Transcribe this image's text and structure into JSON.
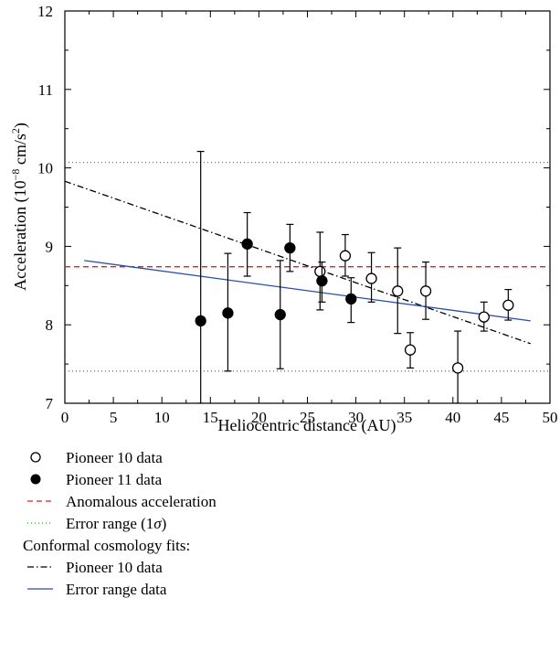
{
  "chart_data": {
    "type": "scatter",
    "title": "",
    "xlabel": "Heliocentric distance (AU)",
    "ylabel_parts": {
      "pre": "Acceleration (10",
      "exp1": "−8",
      "mid": " cm/s",
      "exp2": "2",
      "post": ")"
    },
    "xlim": [
      0,
      50
    ],
    "ylim": [
      7,
      12
    ],
    "x_ticks": [
      "0",
      "5",
      "10",
      "15",
      "20",
      "25",
      "30",
      "35",
      "40",
      "45",
      "50"
    ],
    "y_ticks": [
      "7",
      "8",
      "9",
      "10",
      "11",
      "12"
    ],
    "grid": false,
    "legend_position": "below",
    "series": [
      {
        "name": "Pioneer 10 data",
        "kind": "points",
        "marker": "open-circle",
        "points": [
          {
            "x": 26.3,
            "y": 8.68,
            "lo": 8.19,
            "hi": 9.18
          },
          {
            "x": 28.9,
            "y": 8.88,
            "lo": 8.62,
            "hi": 9.15
          },
          {
            "x": 31.6,
            "y": 8.59,
            "lo": 8.29,
            "hi": 8.92
          },
          {
            "x": 34.3,
            "y": 8.43,
            "lo": 7.89,
            "hi": 8.98
          },
          {
            "x": 35.6,
            "y": 7.68,
            "lo": 7.45,
            "hi": 7.9
          },
          {
            "x": 37.2,
            "y": 8.43,
            "lo": 8.07,
            "hi": 8.8
          },
          {
            "x": 40.5,
            "y": 7.45,
            "lo": 7.0,
            "hi": 7.92
          },
          {
            "x": 43.2,
            "y": 8.1,
            "lo": 7.92,
            "hi": 8.29
          },
          {
            "x": 45.7,
            "y": 8.25,
            "lo": 8.06,
            "hi": 8.45
          }
        ]
      },
      {
        "name": "Pioneer 11 data",
        "kind": "points",
        "marker": "filled-circle",
        "points": [
          {
            "x": 14.0,
            "y": 8.05,
            "lo": 7.0,
            "hi": 10.21
          },
          {
            "x": 16.8,
            "y": 8.15,
            "lo": 7.41,
            "hi": 8.91
          },
          {
            "x": 18.8,
            "y": 9.03,
            "lo": 8.62,
            "hi": 9.43
          },
          {
            "x": 22.2,
            "y": 8.13,
            "lo": 7.44,
            "hi": 8.82
          },
          {
            "x": 23.2,
            "y": 8.98,
            "lo": 8.68,
            "hi": 9.28
          },
          {
            "x": 26.5,
            "y": 8.56,
            "lo": 8.29,
            "hi": 8.8
          },
          {
            "x": 29.5,
            "y": 8.33,
            "lo": 8.03,
            "hi": 8.6
          }
        ]
      },
      {
        "name": "Anomalous acceleration",
        "kind": "line",
        "style": "dashed",
        "color": "#e0201b",
        "points": [
          {
            "x": 0,
            "y": 8.74
          },
          {
            "x": 50,
            "y": 8.74
          }
        ]
      },
      {
        "name": "Error range (1σ)",
        "kind": "band-lines",
        "style": "dotted",
        "color": "#33a02c",
        "lines": [
          [
            {
              "x": 0,
              "y": 10.07
            },
            {
              "x": 50,
              "y": 10.07
            }
          ],
          [
            {
              "x": 0,
              "y": 7.41
            },
            {
              "x": 50,
              "y": 7.41
            }
          ]
        ]
      },
      {
        "name": "Pioneer 10 data",
        "kind": "line",
        "style": "dashdot",
        "color": "#000000",
        "group": "Conformal cosmology fits:",
        "points": [
          {
            "x": 0,
            "y": 9.83
          },
          {
            "x": 48,
            "y": 7.76
          }
        ]
      },
      {
        "name": "Error range data",
        "kind": "line",
        "style": "solid",
        "color": "#2a4fa8",
        "group": "Conformal cosmology fits:",
        "points": [
          {
            "x": 2,
            "y": 8.82
          },
          {
            "x": 48,
            "y": 8.05
          }
        ]
      }
    ]
  },
  "legend": {
    "items": [
      {
        "label": "Pioneer 10 data",
        "symbol": "open-circle"
      },
      {
        "label": "Pioneer 11 data",
        "symbol": "filled-circle"
      },
      {
        "label": "Anomalous acceleration",
        "symbol": "dashed-red"
      },
      {
        "label_pre": "Error range (1",
        "label_sym": "σ",
        "label_post": ")",
        "symbol": "dotted-green"
      },
      {
        "label": "Conformal cosmology fits:",
        "symbol": "none"
      },
      {
        "label": "Pioneer 10 data",
        "symbol": "dashdot-black"
      },
      {
        "label": "Error range data",
        "symbol": "solid-blue"
      }
    ]
  }
}
